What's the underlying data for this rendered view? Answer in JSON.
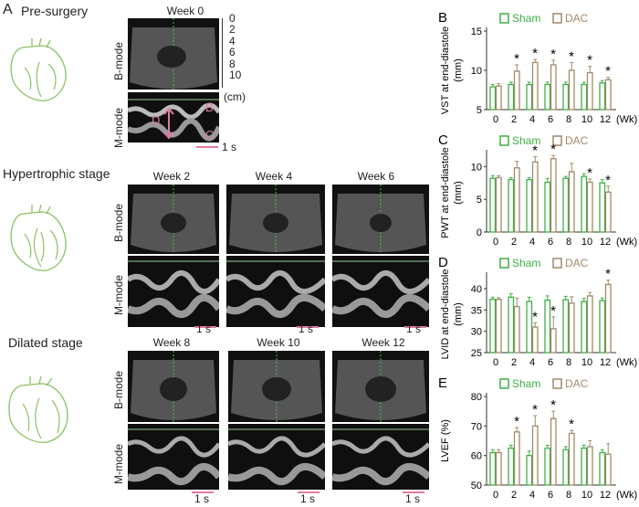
{
  "panel_a": {
    "letter": "A",
    "stages": [
      {
        "title": "Pre-surgery",
        "weeks": [
          "Week 0"
        ]
      },
      {
        "title": "Hypertrophic stage",
        "weeks": [
          "Week 2",
          "Week 4",
          "Week 6"
        ]
      },
      {
        "title": "Dilated stage",
        "weeks": [
          "Week 8",
          "Week 10",
          "Week 12"
        ]
      }
    ],
    "bmode_label": "B-mode",
    "mmode_label": "M-mode",
    "depth_ticks": [
      "0",
      "2",
      "4",
      "6",
      "8",
      "10"
    ],
    "depth_unit": "(cm)",
    "mmode_markers": {
      "b": "B",
      "c": "C",
      "d": "D"
    },
    "time_scale": "1 s",
    "colors": {
      "accent": "#e07aa6",
      "heart": "#8cc063",
      "axis": "#52b84a"
    }
  },
  "chart_data": [
    {
      "panel": "B",
      "type": "bar",
      "ylabel": "VST at end-diastole",
      "yunit": "(mm)",
      "categories": [
        "0",
        "2",
        "4",
        "6",
        "8",
        "10",
        "12"
      ],
      "xunit": "(Wk)",
      "ylim": [
        5,
        15
      ],
      "yticks": [
        5,
        10,
        15
      ],
      "legend": [
        "Sham",
        "DAC"
      ],
      "series": [
        {
          "name": "Sham",
          "values": [
            7.9,
            8.2,
            8.2,
            8.2,
            8.2,
            8.2,
            8.4
          ],
          "errors": [
            0.3,
            0.3,
            0.3,
            0.3,
            0.3,
            0.3,
            0.3
          ]
        },
        {
          "name": "DAC",
          "values": [
            8.0,
            9.9,
            11.0,
            10.7,
            10.0,
            9.7,
            8.8
          ],
          "errors": [
            0.3,
            0.8,
            0.4,
            0.6,
            1.0,
            0.8,
            0.3
          ]
        }
      ],
      "significant": [
        false,
        true,
        true,
        true,
        true,
        true,
        true
      ]
    },
    {
      "panel": "C",
      "type": "bar",
      "ylabel": "PWT at end-diastole",
      "yunit": "(mm)",
      "categories": [
        "0",
        "2",
        "4",
        "6",
        "8",
        "10",
        "12"
      ],
      "xunit": "(Wk)",
      "ylim": [
        0,
        12
      ],
      "yticks": [
        0,
        5,
        10
      ],
      "legend": [
        "Sham",
        "DAC"
      ],
      "series": [
        {
          "name": "Sham",
          "values": [
            8.2,
            8.0,
            8.0,
            7.6,
            8.2,
            8.5,
            7.5
          ],
          "errors": [
            0.4,
            0.3,
            0.3,
            0.6,
            0.3,
            0.4,
            0.5
          ]
        },
        {
          "name": "DAC",
          "values": [
            8.3,
            9.8,
            10.7,
            11.2,
            9.2,
            7.6,
            6.1
          ],
          "errors": [
            0.3,
            1.0,
            0.8,
            0.5,
            1.3,
            0.5,
            0.9
          ]
        }
      ],
      "significant": [
        false,
        false,
        true,
        true,
        false,
        true,
        true
      ]
    },
    {
      "panel": "D",
      "type": "bar",
      "ylabel": "LVID at end-diastole",
      "yunit": "(mm)",
      "categories": [
        "0",
        "2",
        "4",
        "6",
        "8",
        "10",
        "12"
      ],
      "xunit": "(Wk)",
      "ylim": [
        25,
        43
      ],
      "yticks": [
        25,
        30,
        35,
        40
      ],
      "legend": [
        "Sham",
        "DAC"
      ],
      "series": [
        {
          "name": "Sham",
          "values": [
            37.5,
            38.0,
            37.0,
            37.3,
            37.4,
            37.0,
            37.2
          ],
          "errors": [
            0.5,
            0.8,
            1.0,
            1.0,
            0.8,
            0.7,
            0.6
          ]
        },
        {
          "name": "DAC",
          "values": [
            37.5,
            35.8,
            31.0,
            30.6,
            36.6,
            38.3,
            41.0
          ],
          "errors": [
            0.4,
            2.0,
            1.0,
            2.8,
            1.5,
            0.8,
            1.0
          ]
        }
      ],
      "significant": [
        false,
        false,
        true,
        true,
        false,
        false,
        true
      ]
    },
    {
      "panel": "E",
      "type": "bar",
      "ylabel": "LVEF (%)",
      "yunit": "",
      "categories": [
        "0",
        "2",
        "4",
        "6",
        "8",
        "10",
        "12"
      ],
      "xunit": "(Wk)",
      "ylim": [
        50,
        80
      ],
      "yticks": [
        50,
        60,
        70,
        80
      ],
      "legend": [
        "Sham",
        "DAC"
      ],
      "series": [
        {
          "name": "Sham",
          "values": [
            61.0,
            62.5,
            60.0,
            62.5,
            62.0,
            62.5,
            61.0
          ],
          "errors": [
            1.0,
            1.0,
            1.5,
            1.0,
            1.0,
            1.0,
            1.0
          ]
        },
        {
          "name": "DAC",
          "values": [
            61.0,
            68.0,
            70.0,
            72.5,
            67.5,
            63.0,
            60.5
          ],
          "errors": [
            1.0,
            1.5,
            3.5,
            2.5,
            1.0,
            2.0,
            3.5
          ]
        }
      ],
      "significant": [
        false,
        true,
        true,
        true,
        true,
        false,
        false
      ]
    }
  ],
  "chart_colors": {
    "sham": "#3cb043",
    "dac": "#a08a6a"
  }
}
